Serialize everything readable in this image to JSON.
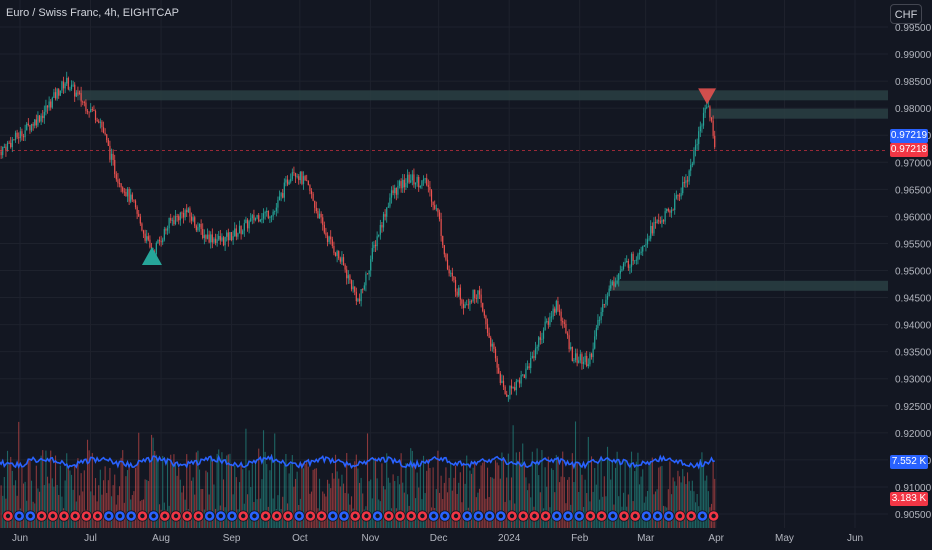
{
  "header": {
    "title": "Euro / Swiss Franc, 4h, EIGHTCAP",
    "currency_button": "CHF"
  },
  "price_tags": {
    "blue_price": "0.97219",
    "red_price": "0.97218",
    "volume_ma": "7.552 K",
    "volume_last": "3.183 K"
  },
  "colors": {
    "background": "#131722",
    "up": "#26a69a",
    "down": "#ef5350",
    "zone": "#2a3f43",
    "volume_ma_line": "#2962ff",
    "tag_blue": "#2962ff",
    "tag_red": "#f23645"
  },
  "markers": {
    "buy": {
      "date": "2023-07-28",
      "price": 0.9525,
      "shape": "triangle-up"
    },
    "sell": {
      "date": "2024-03-28",
      "price": 0.9818,
      "shape": "triangle-down"
    }
  },
  "chart_data": {
    "type": "candlestick",
    "title": "Euro / Swiss Franc, 4h, EIGHTCAP",
    "x_ticks": [
      "Jun",
      "Jul",
      "Aug",
      "Sep",
      "Oct",
      "Nov",
      "Dec",
      "2024",
      "Feb",
      "Mar",
      "Apr",
      "May",
      "Jun"
    ],
    "y_ticks": [
      "0.99500",
      "0.99000",
      "0.98500",
      "0.98000",
      "0.97500",
      "0.97000",
      "0.96500",
      "0.96000",
      "0.95500",
      "0.95000",
      "0.94500",
      "0.94000",
      "0.93500",
      "0.93000",
      "0.92500",
      "0.92000",
      "0.91500",
      "0.91000",
      "0.90500"
    ],
    "ylim": [
      0.9035,
      0.9975
    ],
    "last_price": 0.97218,
    "price_path": [
      [
        "2023-05-22",
        0.972
      ],
      [
        "2023-06-01",
        0.9755
      ],
      [
        "2023-06-10",
        0.979
      ],
      [
        "2023-06-20",
        0.985
      ],
      [
        "2023-06-28",
        0.981
      ],
      [
        "2023-07-05",
        0.978
      ],
      [
        "2023-07-12",
        0.968
      ],
      [
        "2023-07-20",
        0.962
      ],
      [
        "2023-07-28",
        0.953
      ],
      [
        "2023-08-05",
        0.959
      ],
      [
        "2023-08-12",
        0.961
      ],
      [
        "2023-08-20",
        0.9565
      ],
      [
        "2023-08-28",
        0.9555
      ],
      [
        "2023-09-05",
        0.9575
      ],
      [
        "2023-09-12",
        0.96
      ],
      [
        "2023-09-20",
        0.961
      ],
      [
        "2023-09-28",
        0.969
      ],
      [
        "2023-10-05",
        0.965
      ],
      [
        "2023-10-12",
        0.957
      ],
      [
        "2023-10-20",
        0.951
      ],
      [
        "2023-10-27",
        0.944
      ],
      [
        "2023-11-03",
        0.955
      ],
      [
        "2023-11-10",
        0.964
      ],
      [
        "2023-11-18",
        0.967
      ],
      [
        "2023-11-26",
        0.966
      ],
      [
        "2023-12-01",
        0.96
      ],
      [
        "2023-12-05",
        0.95
      ],
      [
        "2023-12-12",
        0.944
      ],
      [
        "2023-12-18",
        0.946
      ],
      [
        "2023-12-25",
        0.935
      ],
      [
        "2023-12-30",
        0.927
      ],
      [
        "2024-01-08",
        0.931
      ],
      [
        "2024-01-15",
        0.938
      ],
      [
        "2024-01-22",
        0.944
      ],
      [
        "2024-01-29",
        0.934
      ],
      [
        "2024-02-05",
        0.933
      ],
      [
        "2024-02-12",
        0.945
      ],
      [
        "2024-02-19",
        0.95
      ],
      [
        "2024-02-26",
        0.953
      ],
      [
        "2024-03-04",
        0.958
      ],
      [
        "2024-03-12",
        0.961
      ],
      [
        "2024-03-20",
        0.968
      ],
      [
        "2024-03-26",
        0.978
      ],
      [
        "2024-03-28",
        0.9815
      ],
      [
        "2024-04-01",
        0.97218
      ]
    ],
    "zones": [
      {
        "from": "2023-06-25",
        "to": "2024-06-30",
        "low": 0.9821,
        "high": 0.9833
      },
      {
        "from": "2024-03-29",
        "to": "2024-06-30",
        "low": 0.979,
        "high": 0.9799
      },
      {
        "from": "2024-02-14",
        "to": "2024-06-30",
        "low": 0.9467,
        "high": 0.9481
      }
    ],
    "volume": {
      "ma": 7.552,
      "last": 3.183,
      "unit": "K"
    }
  }
}
